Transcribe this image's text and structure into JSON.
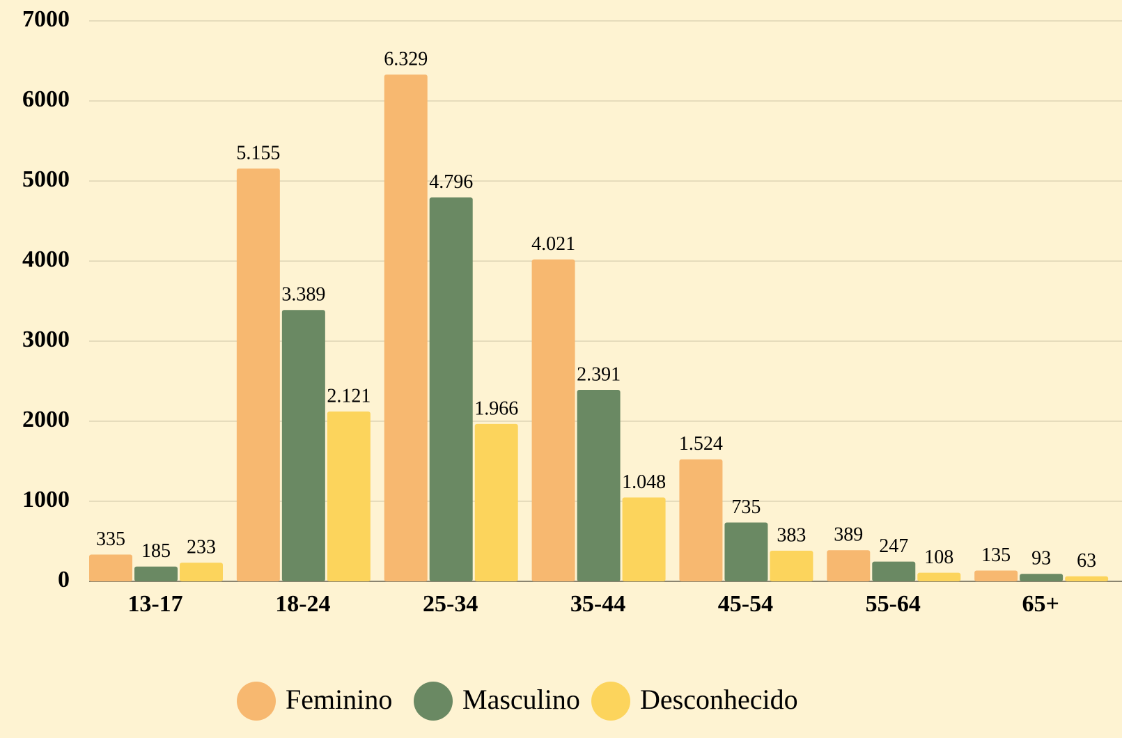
{
  "chart_data": {
    "type": "bar",
    "categories": [
      "13-17",
      "18-24",
      "25-34",
      "35-44",
      "45-54",
      "55-64",
      "65+"
    ],
    "series": [
      {
        "name": "Feminino",
        "color": "#f7b870",
        "values": [
          335,
          5155,
          6329,
          4021,
          1524,
          389,
          135
        ],
        "value_labels": [
          "335",
          "5.155",
          "6.329",
          "4.021",
          "1.524",
          "389",
          "135"
        ]
      },
      {
        "name": "Masculino",
        "color": "#6a8963",
        "values": [
          185,
          3389,
          4796,
          2391,
          735,
          247,
          93
        ],
        "value_labels": [
          "185",
          "3.389",
          "4.796",
          "2.391",
          "735",
          "247",
          "93"
        ]
      },
      {
        "name": "Desconhecido",
        "color": "#fcd45c",
        "values": [
          233,
          2121,
          1966,
          1048,
          383,
          108,
          63
        ],
        "value_labels": [
          "233",
          "2.121",
          "1.966",
          "1.048",
          "383",
          "108",
          "63"
        ]
      }
    ],
    "ylim": [
      0,
      7000
    ],
    "yticks": [
      0,
      1000,
      2000,
      3000,
      4000,
      5000,
      6000,
      7000
    ],
    "grid": true,
    "legend": "bottom"
  }
}
